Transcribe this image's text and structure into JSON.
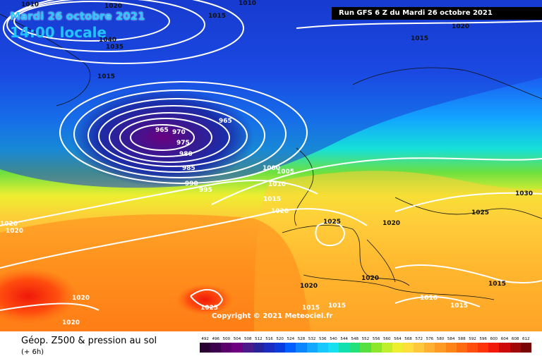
{
  "header": {
    "date_label": "Mardi 26 octobre 2021",
    "time_label": "14:00 locale",
    "run_label": "Run GFS 6 Z du Mardi 26 octobre 2021"
  },
  "copyright": "Copyright © 2021 Meteociel.fr",
  "isobar_labels": [
    "1010",
    "1020",
    "1015",
    "1010",
    "1040",
    "1035",
    "1015",
    "1015",
    "1020",
    "965",
    "970",
    "975",
    "980",
    "985",
    "965",
    "990",
    "995",
    "1000",
    "1005",
    "1010",
    "1015",
    "1020",
    "1025",
    "1020",
    "1025",
    "1030",
    "1015",
    "1020",
    "1020",
    "1020",
    "1020",
    "1025",
    "1015",
    "1010",
    "1015",
    "1015",
    "1020",
    "1020"
  ],
  "legend": {
    "title": "Géop. Z500 & pression au sol",
    "subtitle": "(+ 6h)",
    "scale": [
      "492",
      "496",
      "500",
      "504",
      "508",
      "512",
      "516",
      "520",
      "524",
      "528",
      "532",
      "536",
      "540",
      "544",
      "548",
      "552",
      "556",
      "560",
      "564",
      "568",
      "572",
      "576",
      "580",
      "584",
      "588",
      "592",
      "596",
      "600",
      "604",
      "608",
      "612"
    ],
    "colors": [
      "#2a0033",
      "#3d004d",
      "#5a006b",
      "#6e0080",
      "#4a1a8a",
      "#28239b",
      "#1a2dc0",
      "#0a3bdc",
      "#0060ff",
      "#0a86ff",
      "#13a8ff",
      "#17c8ff",
      "#16e0f0",
      "#10e0b0",
      "#22e07a",
      "#55e040",
      "#8ee62a",
      "#c0ee2a",
      "#eeee30",
      "#ffde3c",
      "#ffc83a",
      "#ffb030",
      "#ff9a22",
      "#ff8418",
      "#ff6a10",
      "#ff4e0e",
      "#ff330a",
      "#f0190a",
      "#cc0a0a",
      "#a00808",
      "#780606"
    ]
  }
}
